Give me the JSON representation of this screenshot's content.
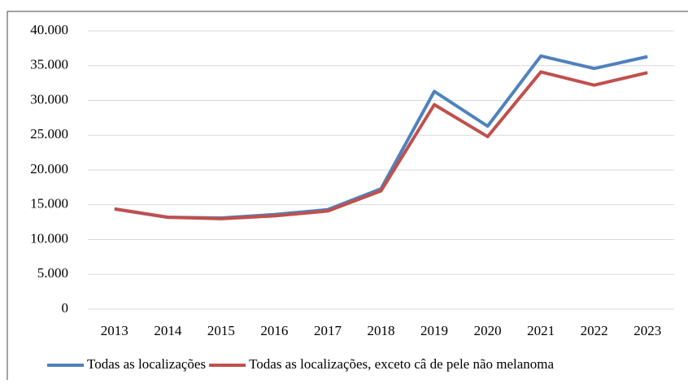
{
  "chart_data": {
    "type": "line",
    "categories": [
      "2013",
      "2014",
      "2015",
      "2016",
      "2017",
      "2018",
      "2019",
      "2020",
      "2021",
      "2022",
      "2023"
    ],
    "series": [
      {
        "name": "Todas as localizações",
        "color": "#4f81bd",
        "values": [
          14400,
          13200,
          13100,
          13600,
          14300,
          17300,
          31300,
          26300,
          36400,
          34600,
          36300
        ]
      },
      {
        "name": "Todas as localizações, exceto câ de pele não melanoma",
        "color": "#c0504d",
        "values": [
          14400,
          13200,
          13000,
          13400,
          14100,
          17000,
          29400,
          24800,
          34100,
          32200,
          34000
        ]
      }
    ],
    "ylim": [
      0,
      40000
    ],
    "yticks": [
      0,
      {
        "value": 5000,
        "label": "5.000"
      },
      {
        "value": 10000,
        "label": "10.000"
      },
      {
        "value": 15000,
        "label": "15.000"
      },
      {
        "value": 20000,
        "label": "20.000"
      },
      {
        "value": 25000,
        "label": "25.000"
      },
      {
        "value": 30000,
        "label": "30.000"
      },
      {
        "value": 35000,
        "label": "35.000"
      },
      {
        "value": 40000,
        "label": "40.000"
      }
    ],
    "grid": true,
    "legend": "bottom"
  }
}
